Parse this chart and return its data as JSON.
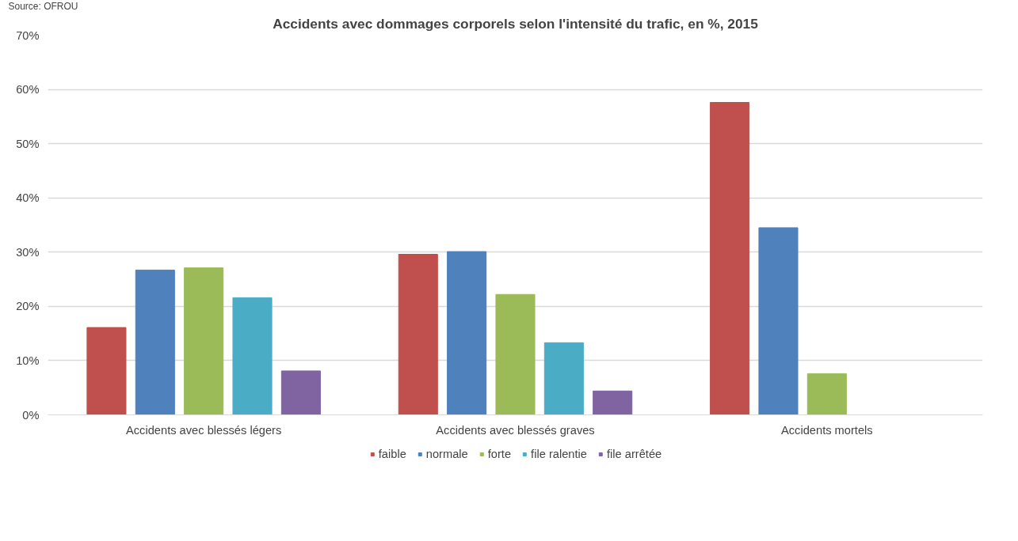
{
  "chart_data": {
    "type": "bar",
    "title": "Accidents avec dommages corporels selon l'intensité du trafic, en %, 2015",
    "annotations": [
      "Source: OFROU"
    ],
    "categories": [
      "Accidents avec blessés légers",
      "Accidents avec blessés graves",
      "Accidents mortels"
    ],
    "series": [
      {
        "name": "faible",
        "color": "#c0504d",
        "values": [
          16.1,
          29.6,
          57.6
        ]
      },
      {
        "name": "normale",
        "color": "#4f81bd",
        "values": [
          26.7,
          30.1,
          34.5
        ]
      },
      {
        "name": "forte",
        "color": "#9bbb59",
        "values": [
          27.1,
          22.2,
          7.6
        ]
      },
      {
        "name": "file ralentie",
        "color": "#4bacc6",
        "values": [
          21.6,
          13.3,
          null
        ]
      },
      {
        "name": "file arrêtée",
        "color": "#8064a2",
        "values": [
          8.1,
          4.4,
          null
        ]
      }
    ],
    "ylim": [
      0,
      70
    ],
    "yticks": [
      {
        "value": 0,
        "label": "0%"
      },
      {
        "value": 10,
        "label": "10%"
      },
      {
        "value": 20,
        "label": "20%"
      },
      {
        "value": 30,
        "label": "30%"
      },
      {
        "value": 40,
        "label": "40%"
      },
      {
        "value": 50,
        "label": "50%"
      },
      {
        "value": 60,
        "label": "60%"
      },
      {
        "value": 70,
        "label": "70%"
      }
    ],
    "grid": "y",
    "legend": "bottom"
  }
}
